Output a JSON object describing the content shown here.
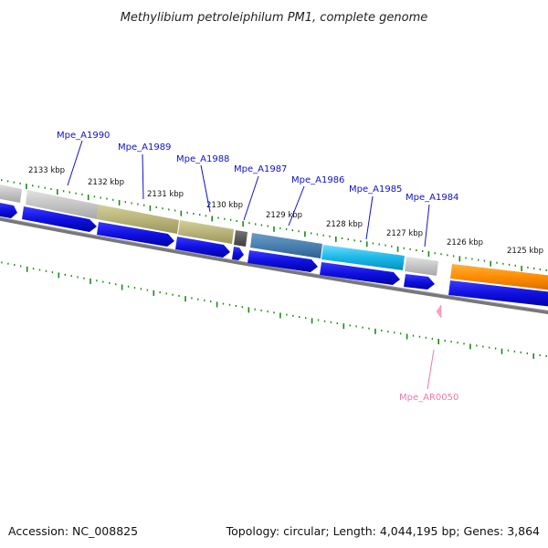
{
  "title": "Methylibium petroleiphilum PM1, complete genome",
  "footer": {
    "accession": "Accession: NC_008825",
    "summary": "Topology: circular; Length: 4,044,195 bp; Genes: 3,864"
  },
  "ruler": {
    "labels": [
      "2133 kbp",
      "2132 kbp",
      "2131 kbp",
      "2130 kbp",
      "2129 kbp",
      "2128 kbp",
      "2127 kbp",
      "2126 kbp",
      "2125 kbp"
    ]
  },
  "genes": [
    {
      "name": "Mpe_A1990",
      "color": "#c0c0c0"
    },
    {
      "name": "Mpe_A1989",
      "color": "#b8b47a"
    },
    {
      "name": "Mpe_A1988",
      "color": "#b8b47a"
    },
    {
      "name": "Mpe_A1987",
      "color": "#555555"
    },
    {
      "name": "Mpe_A1986",
      "color": "#4a80b0"
    },
    {
      "name": "Mpe_A1985",
      "color": "#1ab8e8"
    },
    {
      "name": "Mpe_A1984",
      "color": "#c0c0c0"
    }
  ],
  "rna": {
    "name": "Mpe_AR0050",
    "color": "#f07aa8"
  },
  "colors": {
    "strand_arrow": "#1010e0",
    "tick": "#1a8a1a",
    "backbone": "#777777",
    "orange_gene": "#ff8c00"
  }
}
